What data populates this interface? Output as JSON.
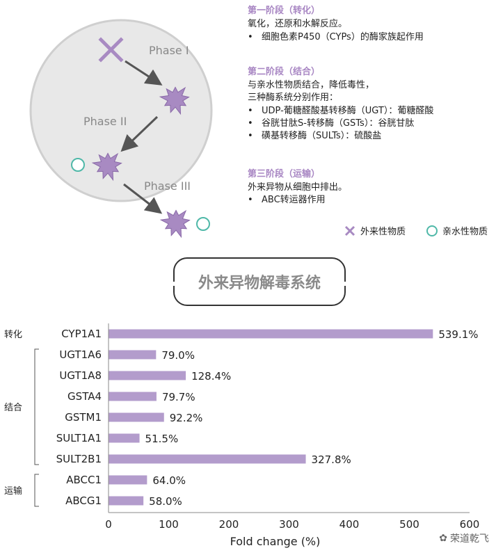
{
  "diagram": {
    "phase_labels": [
      "Phase I",
      "Phase II",
      "Phase III"
    ],
    "stage1": {
      "title": "第一阶段（转化）",
      "desc": "氧化，还原和水解反应。",
      "bullets": [
        "细胞色素P450（CYPs）的酶家族起作用"
      ]
    },
    "stage2": {
      "title": "第二阶段（结合）",
      "desc": "与亲水性物质结合，降低毒性，",
      "desc2": "三种酶系统分别作用：",
      "bullets": [
        "UDP-葡糖醛酸基转移酶（UGT）：葡糖醛酸",
        "谷胱甘肽S-转移酶（GSTs）：谷胱甘肽",
        "磺基转移酶（SULTs）：硫酸盐"
      ]
    },
    "stage3": {
      "title": "第三阶段（运输）",
      "desc": "外来异物从细胞中排出。",
      "bullets": [
        "ABC转运器作用"
      ]
    },
    "legend": {
      "xenobiotic": "外来性物质",
      "hydrophilic": "亲水性物质"
    },
    "colors": {
      "purple": "#b39ccc",
      "teal": "#4fb8a8",
      "circle": "#e8e8e8"
    }
  },
  "banner": "外来异物解毒系统",
  "watermark": "荣道乾飞",
  "chart_data": {
    "type": "bar",
    "orientation": "horizontal",
    "categories": [
      "CYP1A1",
      "UGT1A6",
      "UGT1A8",
      "GSTA4",
      "GSTM1",
      "SULT1A1",
      "SULT2B1",
      "ABCC1",
      "ABCG1"
    ],
    "values": [
      539.1,
      79.0,
      128.4,
      79.7,
      92.2,
      51.5,
      327.8,
      64.0,
      58.0
    ],
    "value_labels": [
      "539.1%",
      "79.0%",
      "128.4%",
      "79.7%",
      "92.2%",
      "51.5%",
      "327.8%",
      "64.0%",
      "58.0%"
    ],
    "groups": [
      {
        "label": "转化",
        "start": 0,
        "end": 0
      },
      {
        "label": "结合",
        "start": 1,
        "end": 6
      },
      {
        "label": "运输",
        "start": 7,
        "end": 8
      }
    ],
    "xlabel": "Fold change (%)",
    "xlim": [
      0,
      600
    ],
    "xticks": [
      "0",
      "100",
      "200",
      "300",
      "400",
      "500",
      "600"
    ],
    "bar_color": "#b39ccc"
  }
}
